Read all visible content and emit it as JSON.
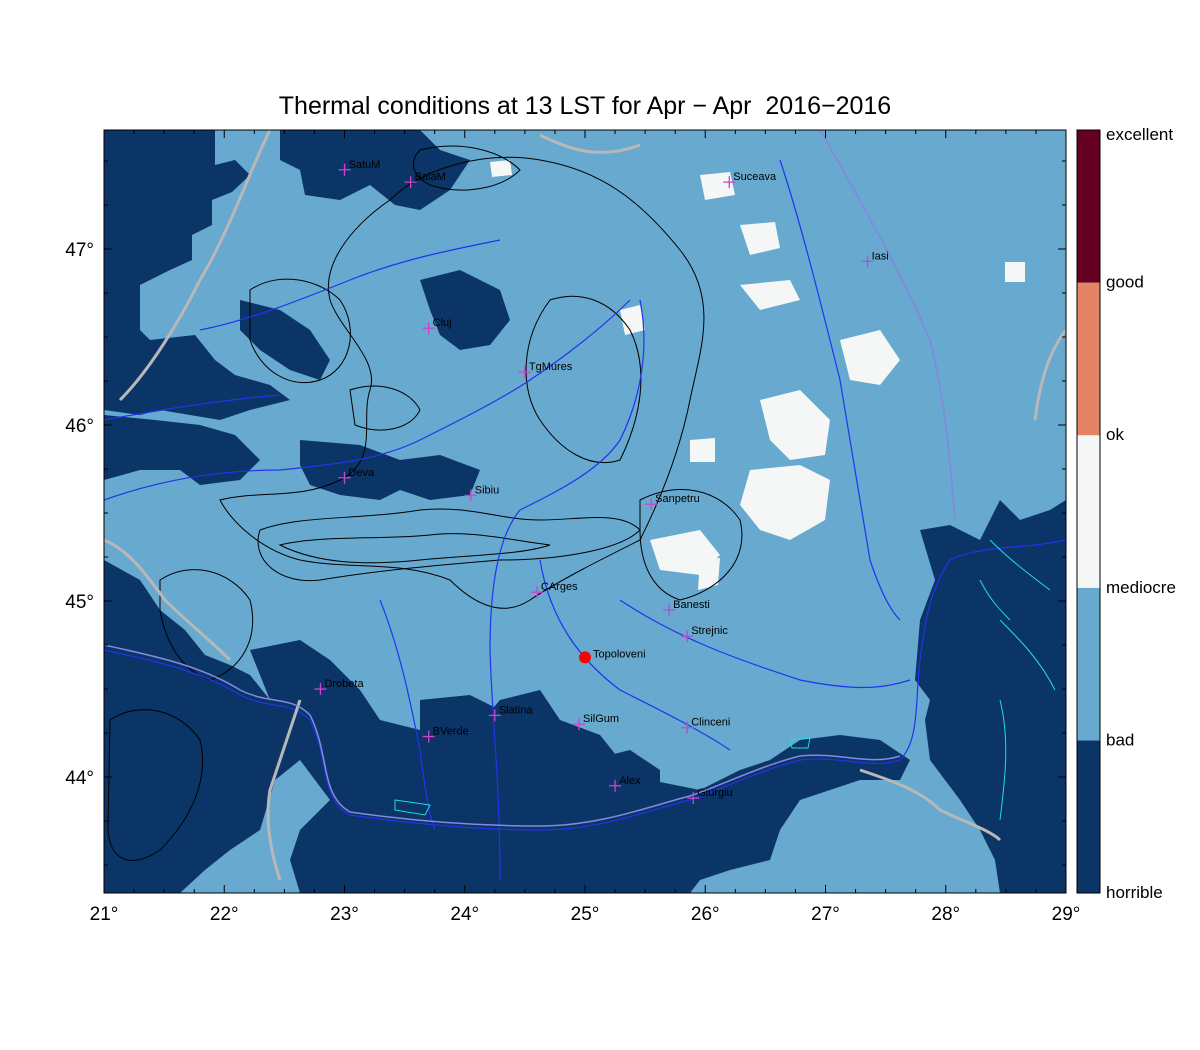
{
  "title": "Thermal conditions at 13 LST for Apr − Apr  2016−2016",
  "x_ticks": [
    "21°",
    "22°",
    "23°",
    "24°",
    "25°",
    "26°",
    "27°",
    "28°",
    "29°"
  ],
  "y_ticks": [
    "44°",
    "45°",
    "46°",
    "47°"
  ],
  "legend": [
    {
      "label": "horrible",
      "color": "#0a3566"
    },
    {
      "label": "bad",
      "color": "#67a9cf"
    },
    {
      "label": "mediocre",
      "color": "#f5f6f6"
    },
    {
      "label": "ok",
      "color": "#e48466"
    },
    {
      "label": "good",
      "color": "#650020"
    }
  ],
  "legend_top_label": "excellent",
  "cities": [
    {
      "name": "SatuM",
      "lon": 23.0,
      "lat": 47.45
    },
    {
      "name": "BaiaM",
      "lon": 23.55,
      "lat": 47.38
    },
    {
      "name": "Suceava",
      "lon": 26.2,
      "lat": 47.38
    },
    {
      "name": "Iasi",
      "lon": 27.35,
      "lat": 46.93
    },
    {
      "name": "Cluj",
      "lon": 23.7,
      "lat": 46.55
    },
    {
      "name": "TgMures",
      "lon": 24.5,
      "lat": 46.3
    },
    {
      "name": "Deva",
      "lon": 23.0,
      "lat": 45.7
    },
    {
      "name": "Sibiu",
      "lon": 24.05,
      "lat": 45.6
    },
    {
      "name": "Sanpetru",
      "lon": 25.55,
      "lat": 45.55
    },
    {
      "name": "CArges",
      "lon": 24.6,
      "lat": 45.05
    },
    {
      "name": "Banesti",
      "lon": 25.7,
      "lat": 44.95
    },
    {
      "name": "Strejnic",
      "lon": 25.85,
      "lat": 44.8
    },
    {
      "name": "Drobeta",
      "lon": 22.8,
      "lat": 44.5
    },
    {
      "name": "Slatina",
      "lon": 24.25,
      "lat": 44.35
    },
    {
      "name": "SilGum",
      "lon": 24.95,
      "lat": 44.3
    },
    {
      "name": "Clinceni",
      "lon": 25.85,
      "lat": 44.28
    },
    {
      "name": "BVerde",
      "lon": 23.7,
      "lat": 44.23
    },
    {
      "name": "Alex",
      "lon": 25.25,
      "lat": 43.95
    },
    {
      "name": "Giurgiu",
      "lon": 25.9,
      "lat": 43.88
    }
  ],
  "highlight": {
    "name": "Topoloveni",
    "lon": 25.0,
    "lat": 44.68,
    "color": "#ff0000"
  },
  "colors": {
    "horrible": "#0a3566",
    "bad": "#67a9cf",
    "mediocre": "#f5f6f6",
    "river": "#2233ee",
    "border": "#b8b8b8",
    "lake": "#22dddd",
    "marker": "#cc44cc",
    "contour": "#000000"
  }
}
